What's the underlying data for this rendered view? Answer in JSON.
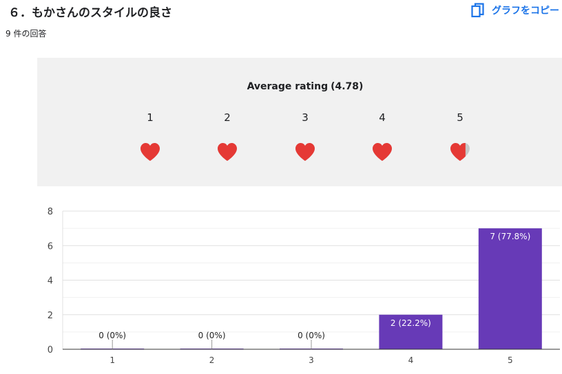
{
  "question": {
    "title": "６．もかさんのスタイルの良さ",
    "response_count": "9 件の回答"
  },
  "toolbar": {
    "copy_label": "グラフをコピー",
    "copy_icon": "copy-icon"
  },
  "rating": {
    "title_prefix": "Average rating",
    "average": "(4.78)",
    "average_value": 4.78,
    "scale": [
      "1",
      "2",
      "3",
      "4",
      "5"
    ],
    "icon": "heart-icon",
    "filled_color": "#e53935",
    "empty_color": "#c7c7c7"
  },
  "chart_data": {
    "type": "bar",
    "categories": [
      "1",
      "2",
      "3",
      "4",
      "5"
    ],
    "values": [
      0,
      0,
      0,
      2,
      7
    ],
    "data_labels": [
      "0 (0%)",
      "0 (0%)",
      "0 (0%)",
      "2 (22.2%)",
      "7 (77.8%)"
    ],
    "ylim": [
      0,
      8
    ],
    "yticks": [
      0,
      2,
      4,
      6,
      8
    ],
    "grid": true,
    "bar_color": "#673ab7"
  }
}
